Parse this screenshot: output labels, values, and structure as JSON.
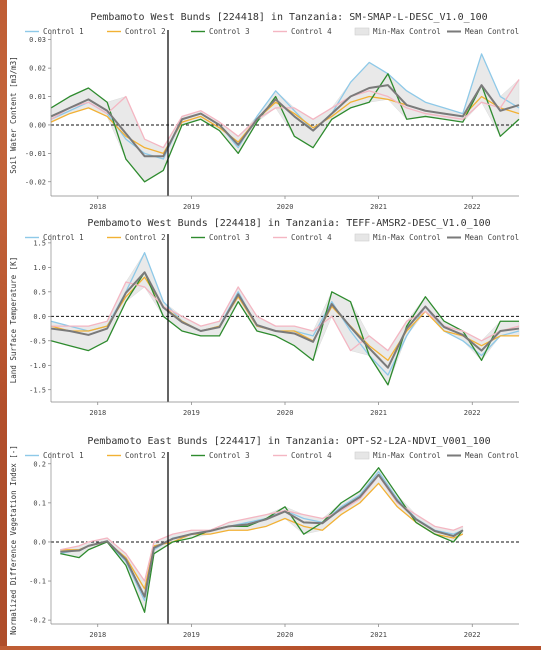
{
  "colors": {
    "control1": "#8ec9e8",
    "control2": "#f2b134",
    "control3": "#2e8b2e",
    "control4": "#f4b6c2",
    "minmax": "#e6e6e6",
    "mean": "#7a7a7a"
  },
  "legend": [
    "Control 1",
    "Control 2",
    "Control 3",
    "Control 4",
    "Min-Max Control",
    "Mean Control"
  ],
  "event_date": 2018.75,
  "chart_data": [
    {
      "type": "line",
      "title": "Pembamoto West Bunds [224418] in Tanzania: SM-SMAP-L-DESC_V1.0_100",
      "ylabel": "Soil Water Content [m3/m3]",
      "xlim": [
        2017.5,
        2022.5
      ],
      "ylim": [
        -0.025,
        0.032
      ],
      "yticks": [
        -0.02,
        -0.01,
        0.0,
        0.01,
        0.02,
        0.03
      ],
      "ytick_labels": [
        "-0.02",
        "-0.01",
        "0.00",
        "0.01",
        "0.02",
        "0.03"
      ],
      "xticks": [
        2018,
        2019,
        2020,
        2021,
        2022
      ],
      "xtick_labels": [
        "2018",
        "2019",
        "2020",
        "2021",
        "2022"
      ],
      "x": [
        2017.5,
        2017.7,
        2017.9,
        2018.1,
        2018.3,
        2018.5,
        2018.7,
        2018.9,
        2019.1,
        2019.3,
        2019.5,
        2019.7,
        2019.9,
        2020.1,
        2020.3,
        2020.5,
        2020.7,
        2020.9,
        2021.1,
        2021.3,
        2021.5,
        2021.7,
        2021.9,
        2022.1,
        2022.3,
        2022.5
      ],
      "series": [
        {
          "name": "Control 1",
          "values": [
            0.002,
            0.005,
            0.008,
            0.004,
            -0.005,
            -0.01,
            -0.012,
            0.002,
            0.004,
            0.0,
            -0.008,
            0.003,
            0.012,
            0.005,
            -0.002,
            0.004,
            0.015,
            0.022,
            0.018,
            0.012,
            0.008,
            0.006,
            0.004,
            0.025,
            0.01,
            0.006
          ]
        },
        {
          "name": "Control 2",
          "values": [
            0.001,
            0.004,
            0.006,
            0.003,
            -0.004,
            -0.008,
            -0.01,
            0.001,
            0.003,
            -0.001,
            -0.006,
            0.002,
            0.008,
            0.004,
            -0.001,
            0.003,
            0.008,
            0.01,
            0.009,
            0.007,
            0.005,
            0.004,
            0.003,
            0.01,
            0.006,
            0.004
          ]
        },
        {
          "name": "Control 3",
          "values": [
            0.006,
            0.01,
            0.013,
            0.008,
            -0.012,
            -0.02,
            -0.016,
            0.0,
            0.002,
            -0.002,
            -0.01,
            0.001,
            0.01,
            -0.004,
            -0.008,
            0.002,
            0.006,
            0.008,
            0.018,
            0.002,
            0.003,
            0.002,
            0.001,
            0.014,
            -0.004,
            0.002
          ]
        },
        {
          "name": "Control 4",
          "values": [
            0.002,
            0.006,
            0.008,
            0.004,
            0.01,
            -0.005,
            -0.008,
            0.003,
            0.005,
            0.001,
            -0.004,
            0.002,
            0.006,
            0.006,
            0.002,
            0.006,
            0.01,
            0.012,
            0.01,
            0.006,
            0.004,
            0.003,
            0.002,
            0.008,
            0.006,
            0.016
          ]
        },
        {
          "name": "Mean Control",
          "values": [
            0.003,
            0.006,
            0.009,
            0.005,
            -0.003,
            -0.011,
            -0.011,
            0.002,
            0.004,
            0.0,
            -0.007,
            0.002,
            0.009,
            0.003,
            -0.002,
            0.004,
            0.01,
            0.013,
            0.014,
            0.007,
            0.005,
            0.004,
            0.003,
            0.014,
            0.005,
            0.007
          ]
        }
      ]
    },
    {
      "type": "line",
      "title": "Pembamoto West Bunds [224418] in Tanzania: TEFF-AMSR2-DESC_V1.0_100",
      "ylabel": "Land Surface Temperature [K]",
      "xlim": [
        2017.5,
        2022.5
      ],
      "ylim": [
        -1.75,
        1.6
      ],
      "yticks": [
        -1.5,
        -1.0,
        -0.5,
        0.0,
        0.5,
        1.0,
        1.5
      ],
      "ytick_labels": [
        "-1.5",
        "-1.0",
        "-0.5",
        "0.0",
        "0.5",
        "1.0",
        "1.5"
      ],
      "xticks": [
        2018,
        2019,
        2020,
        2021,
        2022
      ],
      "xtick_labels": [
        "2018",
        "2019",
        "2020",
        "2021",
        "2022"
      ],
      "x": [
        2017.5,
        2017.7,
        2017.9,
        2018.1,
        2018.3,
        2018.5,
        2018.7,
        2018.9,
        2019.1,
        2019.3,
        2019.5,
        2019.7,
        2019.9,
        2020.1,
        2020.3,
        2020.5,
        2020.7,
        2020.9,
        2021.1,
        2021.3,
        2021.5,
        2021.7,
        2021.9,
        2022.1,
        2022.3,
        2022.5
      ],
      "series": [
        {
          "name": "Control 1",
          "values": [
            -0.1,
            -0.2,
            -0.3,
            -0.2,
            0.5,
            1.3,
            0.3,
            -0.1,
            -0.3,
            -0.2,
            0.5,
            -0.2,
            -0.3,
            -0.3,
            -0.4,
            0.3,
            -0.3,
            -0.8,
            -1.2,
            -0.4,
            0.2,
            -0.3,
            -0.5,
            -0.8,
            -0.4,
            -0.3
          ]
        },
        {
          "name": "Control 2",
          "values": [
            -0.2,
            -0.3,
            -0.3,
            -0.2,
            0.4,
            0.8,
            0.2,
            -0.1,
            -0.3,
            -0.2,
            0.4,
            -0.2,
            -0.3,
            -0.3,
            -0.5,
            0.2,
            -0.2,
            -0.6,
            -0.9,
            -0.3,
            0.1,
            -0.3,
            -0.4,
            -0.6,
            -0.4,
            -0.4
          ]
        },
        {
          "name": "Control 3",
          "values": [
            -0.5,
            -0.6,
            -0.7,
            -0.5,
            0.3,
            0.9,
            0.0,
            -0.3,
            -0.4,
            -0.4,
            0.3,
            -0.3,
            -0.4,
            -0.6,
            -0.9,
            0.5,
            0.3,
            -0.8,
            -1.4,
            -0.2,
            0.4,
            -0.1,
            -0.3,
            -0.9,
            -0.1,
            -0.1
          ]
        },
        {
          "name": "Control 4",
          "values": [
            -0.2,
            -0.2,
            -0.2,
            -0.1,
            0.7,
            0.6,
            0.2,
            0.0,
            -0.2,
            -0.1,
            0.6,
            0.0,
            -0.2,
            -0.2,
            -0.3,
            0.0,
            -0.7,
            -0.4,
            -0.7,
            -0.1,
            0.1,
            -0.2,
            -0.3,
            -0.5,
            -0.3,
            -0.2
          ]
        },
        {
          "name": "Mean Control",
          "values": [
            -0.25,
            -0.3,
            -0.38,
            -0.25,
            0.48,
            0.9,
            0.18,
            -0.12,
            -0.3,
            -0.22,
            0.45,
            -0.18,
            -0.3,
            -0.35,
            -0.52,
            0.25,
            -0.22,
            -0.65,
            -1.05,
            -0.25,
            0.2,
            -0.22,
            -0.38,
            -0.7,
            -0.3,
            -0.25
          ]
        }
      ]
    },
    {
      "type": "line",
      "title": "Pembamoto East Bunds [224417] in Tanzania: OPT-S2-L2A-NDVI_V001_100",
      "ylabel": "Normalized Difference Vegetation Index [-]",
      "xlim": [
        2017.5,
        2022.5
      ],
      "ylim": [
        -0.21,
        0.22
      ],
      "yticks": [
        -0.2,
        -0.1,
        0.0,
        0.1,
        0.2
      ],
      "ytick_labels": [
        "-0.2",
        "-0.1",
        "0.0",
        "0.1",
        "0.2"
      ],
      "xticks": [
        2018,
        2019,
        2020,
        2021,
        2022
      ],
      "xtick_labels": [
        "2018",
        "2019",
        "2020",
        "2021",
        "2022"
      ],
      "x": [
        2017.6,
        2017.8,
        2017.9,
        2018.1,
        2018.3,
        2018.5,
        2018.6,
        2018.8,
        2019.0,
        2019.2,
        2019.4,
        2019.6,
        2019.8,
        2020.0,
        2020.2,
        2020.4,
        2020.6,
        2020.8,
        2021.0,
        2021.2,
        2021.4,
        2021.6,
        2021.8,
        2021.9
      ],
      "series": [
        {
          "name": "Control 1",
          "values": [
            -0.03,
            -0.02,
            -0.01,
            0.0,
            -0.05,
            -0.15,
            -0.02,
            0.01,
            0.02,
            0.03,
            0.04,
            0.05,
            0.06,
            0.08,
            0.06,
            0.05,
            0.09,
            0.12,
            0.18,
            0.11,
            0.06,
            0.03,
            0.02,
            0.03
          ]
        },
        {
          "name": "Control 2",
          "values": [
            -0.02,
            -0.02,
            -0.01,
            0.0,
            -0.04,
            -0.12,
            -0.01,
            0.0,
            0.02,
            0.02,
            0.03,
            0.03,
            0.04,
            0.06,
            0.04,
            0.03,
            0.07,
            0.1,
            0.15,
            0.09,
            0.05,
            0.02,
            0.01,
            0.02
          ]
        },
        {
          "name": "Control 3",
          "values": [
            -0.03,
            -0.04,
            -0.02,
            0.0,
            -0.06,
            -0.18,
            -0.03,
            0.0,
            0.01,
            0.03,
            0.04,
            0.04,
            0.06,
            0.09,
            0.02,
            0.05,
            0.1,
            0.13,
            0.19,
            0.12,
            0.05,
            0.02,
            0.0,
            0.03
          ]
        },
        {
          "name": "Control 4",
          "values": [
            -0.02,
            -0.01,
            0.0,
            0.01,
            -0.03,
            -0.1,
            0.0,
            0.02,
            0.03,
            0.03,
            0.05,
            0.06,
            0.07,
            0.08,
            0.07,
            0.06,
            0.08,
            0.11,
            0.17,
            0.1,
            0.07,
            0.04,
            0.03,
            0.04
          ]
        },
        {
          "name": "Mean Control",
          "values": [
            -0.025,
            -0.022,
            -0.01,
            0.002,
            -0.045,
            -0.14,
            -0.015,
            0.008,
            0.02,
            0.028,
            0.04,
            0.045,
            0.058,
            0.078,
            0.05,
            0.048,
            0.085,
            0.115,
            0.172,
            0.105,
            0.058,
            0.028,
            0.015,
            0.03
          ]
        }
      ]
    }
  ]
}
